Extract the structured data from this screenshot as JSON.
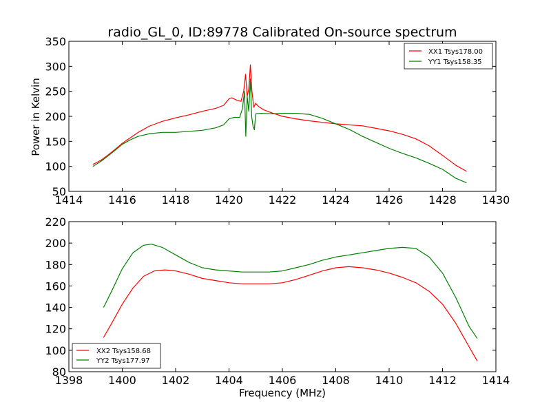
{
  "chart_data": [
    {
      "type": "line",
      "title": "radio_GL_0, ID:89778 Calibrated On-source spectrum",
      "xlabel": "",
      "ylabel": "Power in Kelvin",
      "xlim": [
        1414,
        1430
      ],
      "ylim": [
        50,
        350
      ],
      "xticks": [
        "1414",
        "1416",
        "1418",
        "1420",
        "1422",
        "1424",
        "1426",
        "1428",
        "1430"
      ],
      "yticks": [
        "50",
        "100",
        "150",
        "200",
        "250",
        "300",
        "350"
      ],
      "legend_position": "top-right",
      "grid": false,
      "series": [
        {
          "name": "XX1 Tsys178.00",
          "color": "#ff0000",
          "points": [
            [
              1414.9,
              104
            ],
            [
              1415.2,
              112
            ],
            [
              1415.5,
              124
            ],
            [
              1415.8,
              137
            ],
            [
              1416.0,
              146
            ],
            [
              1416.3,
              157
            ],
            [
              1416.6,
              168
            ],
            [
              1417.0,
              180
            ],
            [
              1417.5,
              190
            ],
            [
              1418.0,
              197
            ],
            [
              1418.5,
              203
            ],
            [
              1419.0,
              210
            ],
            [
              1419.5,
              216
            ],
            [
              1419.8,
              222
            ],
            [
              1420.0,
              235
            ],
            [
              1420.1,
              237
            ],
            [
              1420.3,
              232
            ],
            [
              1420.45,
              230
            ],
            [
              1420.55,
              250
            ],
            [
              1420.62,
              284
            ],
            [
              1420.68,
              240
            ],
            [
              1420.74,
              255
            ],
            [
              1420.8,
              303
            ],
            [
              1420.86,
              250
            ],
            [
              1420.93,
              218
            ],
            [
              1421.0,
              226
            ],
            [
              1421.1,
              220
            ],
            [
              1421.3,
              213
            ],
            [
              1421.6,
              207
            ],
            [
              1422.0,
              200
            ],
            [
              1422.5,
              195
            ],
            [
              1423.0,
              191
            ],
            [
              1423.5,
              188
            ],
            [
              1424.0,
              185
            ],
            [
              1424.5,
              183
            ],
            [
              1425.0,
              181
            ],
            [
              1425.5,
              176
            ],
            [
              1426.0,
              171
            ],
            [
              1426.5,
              164
            ],
            [
              1427.0,
              155
            ],
            [
              1427.5,
              141
            ],
            [
              1428.0,
              122
            ],
            [
              1428.5,
              102
            ],
            [
              1428.9,
              90
            ]
          ]
        },
        {
          "name": "YY1 Tsys158.35",
          "color": "#008000",
          "points": [
            [
              1414.9,
              100
            ],
            [
              1415.2,
              110
            ],
            [
              1415.5,
              122
            ],
            [
              1415.8,
              135
            ],
            [
              1416.0,
              144
            ],
            [
              1416.3,
              153
            ],
            [
              1416.6,
              160
            ],
            [
              1417.0,
              165
            ],
            [
              1417.5,
              168
            ],
            [
              1418.0,
              168
            ],
            [
              1418.5,
              170
            ],
            [
              1419.0,
              172
            ],
            [
              1419.5,
              177
            ],
            [
              1419.8,
              183
            ],
            [
              1420.0,
              195
            ],
            [
              1420.2,
              198
            ],
            [
              1420.4,
              198
            ],
            [
              1420.5,
              215
            ],
            [
              1420.58,
              250
            ],
            [
              1420.63,
              160
            ],
            [
              1420.68,
              240
            ],
            [
              1420.74,
              210
            ],
            [
              1420.8,
              275
            ],
            [
              1420.85,
              200
            ],
            [
              1420.9,
              180
            ],
            [
              1420.95,
              173
            ],
            [
              1421.0,
              205
            ],
            [
              1421.2,
              206
            ],
            [
              1421.6,
              205
            ],
            [
              1422.0,
              206
            ],
            [
              1422.5,
              206
            ],
            [
              1423.0,
              204
            ],
            [
              1423.5,
              196
            ],
            [
              1424.0,
              185
            ],
            [
              1424.5,
              174
            ],
            [
              1425.0,
              160
            ],
            [
              1425.5,
              148
            ],
            [
              1426.0,
              136
            ],
            [
              1426.5,
              126
            ],
            [
              1427.0,
              117
            ],
            [
              1427.5,
              106
            ],
            [
              1428.0,
              94
            ],
            [
              1428.5,
              76
            ],
            [
              1428.9,
              67
            ]
          ]
        }
      ]
    },
    {
      "type": "line",
      "title": "",
      "xlabel": "Frequency (MHz)",
      "ylabel": "",
      "xlim": [
        1398,
        1414
      ],
      "ylim": [
        80,
        220
      ],
      "xticks": [
        "1398",
        "1400",
        "1402",
        "1404",
        "1406",
        "1408",
        "1410",
        "1412",
        "1414"
      ],
      "yticks": [
        "80",
        "100",
        "120",
        "140",
        "160",
        "180",
        "200",
        "220"
      ],
      "legend_position": "bottom-left",
      "grid": false,
      "series": [
        {
          "name": "XX2 Tsys158.68",
          "color": "#ff0000",
          "points": [
            [
              1399.3,
              112
            ],
            [
              1399.6,
              125
            ],
            [
              1400.0,
              143
            ],
            [
              1400.4,
              158
            ],
            [
              1400.8,
              169
            ],
            [
              1401.2,
              174
            ],
            [
              1401.6,
              175
            ],
            [
              1402.0,
              174
            ],
            [
              1402.5,
              171
            ],
            [
              1403.0,
              167
            ],
            [
              1403.5,
              165
            ],
            [
              1404.0,
              163
            ],
            [
              1404.5,
              162
            ],
            [
              1405.0,
              162
            ],
            [
              1405.5,
              162
            ],
            [
              1406.0,
              163
            ],
            [
              1406.5,
              166
            ],
            [
              1407.0,
              170
            ],
            [
              1407.5,
              174
            ],
            [
              1408.0,
              177
            ],
            [
              1408.5,
              178
            ],
            [
              1409.0,
              177
            ],
            [
              1409.5,
              175
            ],
            [
              1410.0,
              172
            ],
            [
              1410.5,
              168
            ],
            [
              1411.0,
              163
            ],
            [
              1411.5,
              155
            ],
            [
              1412.0,
              143
            ],
            [
              1412.5,
              125
            ],
            [
              1413.0,
              103
            ],
            [
              1413.3,
              90
            ]
          ]
        },
        {
          "name": "YY2 Tsys177.97",
          "color": "#008000",
          "points": [
            [
              1399.3,
              140
            ],
            [
              1399.6,
              155
            ],
            [
              1400.0,
              176
            ],
            [
              1400.4,
              191
            ],
            [
              1400.8,
              198
            ],
            [
              1401.1,
              199
            ],
            [
              1401.5,
              196
            ],
            [
              1402.0,
              189
            ],
            [
              1402.5,
              182
            ],
            [
              1403.0,
              177
            ],
            [
              1403.5,
              175
            ],
            [
              1404.0,
              174
            ],
            [
              1404.5,
              173
            ],
            [
              1405.0,
              173
            ],
            [
              1405.5,
              173
            ],
            [
              1406.0,
              174
            ],
            [
              1406.5,
              177
            ],
            [
              1407.0,
              180
            ],
            [
              1407.5,
              184
            ],
            [
              1408.0,
              187
            ],
            [
              1408.5,
              189
            ],
            [
              1409.0,
              191
            ],
            [
              1409.5,
              193
            ],
            [
              1410.0,
              195
            ],
            [
              1410.5,
              196
            ],
            [
              1411.0,
              195
            ],
            [
              1411.5,
              187
            ],
            [
              1412.0,
              172
            ],
            [
              1412.5,
              149
            ],
            [
              1413.0,
              122
            ],
            [
              1413.3,
              111
            ]
          ]
        }
      ]
    }
  ]
}
